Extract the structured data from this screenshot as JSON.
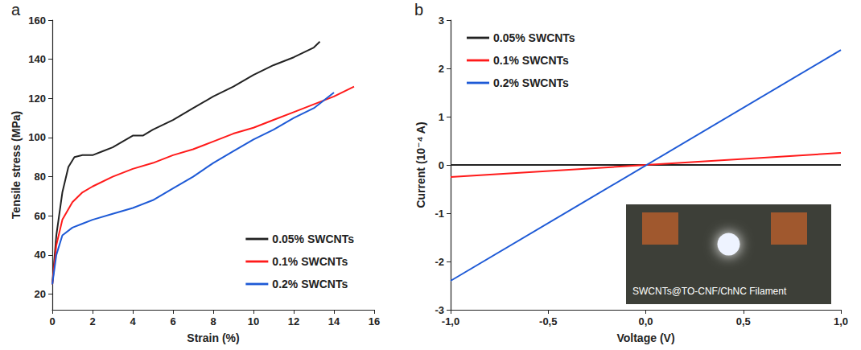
{
  "chart_data": [
    {
      "type": "line",
      "panel_label": "a",
      "x_label": "Strain (%)",
      "y_label": "Tensile stress (MPa)",
      "xlim": [
        0,
        16
      ],
      "xticks": [
        0,
        2,
        4,
        6,
        8,
        10,
        12,
        14,
        16
      ],
      "ylim": [
        12,
        160
      ],
      "yticks": [
        20,
        40,
        60,
        80,
        100,
        120,
        140,
        160
      ],
      "grid": false,
      "legend": "lower right",
      "line_style": "solid",
      "marker": "none",
      "series": [
        {
          "name": "0.05% SWCNTs",
          "color": "#222222",
          "x": [
            0,
            0.2,
            0.5,
            0.8,
            1.1,
            1.5,
            2,
            2.5,
            3,
            3.5,
            4,
            4.5,
            5,
            6,
            7,
            8,
            9,
            10,
            11,
            12,
            13,
            13.3
          ],
          "values": [
            25,
            50,
            72,
            85,
            90,
            91,
            91,
            93,
            95,
            98,
            101,
            101,
            104,
            109,
            115,
            121,
            126,
            132,
            137,
            141,
            146,
            149
          ]
        },
        {
          "name": "0.1% SWCNTs",
          "color": "#ff1a1a",
          "x": [
            0,
            0.2,
            0.5,
            1,
            1.5,
            2,
            3,
            4,
            5,
            6,
            7,
            8,
            9,
            10,
            11,
            12,
            13,
            14,
            15
          ],
          "values": [
            25,
            45,
            58,
            67,
            72,
            75,
            80,
            84,
            87,
            91,
            94,
            98,
            102,
            105,
            109,
            113,
            117,
            121,
            126
          ]
        },
        {
          "name": "0.2% SWCNTs",
          "color": "#1e5ad6",
          "x": [
            0,
            0.2,
            0.5,
            1,
            1.5,
            2,
            3,
            4,
            5,
            6,
            7,
            8,
            9,
            10,
            11,
            12,
            13,
            14
          ],
          "values": [
            25,
            40,
            50,
            54,
            56,
            58,
            61,
            64,
            68,
            74,
            80,
            87,
            93,
            99,
            104,
            110,
            115,
            123
          ]
        }
      ]
    },
    {
      "type": "line",
      "panel_label": "b",
      "x_label": "Voltage (V)",
      "y_label": "Current (10⁻⁴ A)",
      "xlim": [
        -1,
        1
      ],
      "xticks": [
        {
          "value": -1,
          "label": "-1,0"
        },
        {
          "value": -0.5,
          "label": "-0,5"
        },
        {
          "value": 0,
          "label": "0,0"
        },
        {
          "value": 0.5,
          "label": "0,5"
        },
        {
          "value": 1,
          "label": "1,0"
        }
      ],
      "ylim": [
        -3,
        3
      ],
      "yticks": [
        -3,
        -2,
        -1,
        0,
        1,
        2,
        3
      ],
      "grid": false,
      "legend": "upper left",
      "line_style": "solid",
      "marker": "none",
      "annotations": [
        "SWCNTs@TO-CNF/ChNC Filament"
      ],
      "series": [
        {
          "name": "0.05% SWCNTs",
          "color": "#222222",
          "x": [
            -1,
            1
          ],
          "values": [
            -0.002,
            0.002
          ]
        },
        {
          "name": "0.1% SWCNTs",
          "color": "#ff1a1a",
          "x": [
            -1,
            1
          ],
          "values": [
            -0.25,
            0.25
          ]
        },
        {
          "name": "0.2% SWCNTs",
          "color": "#1e5ad6",
          "x": [
            -1,
            1
          ],
          "values": [
            -2.4,
            2.38
          ]
        }
      ]
    }
  ]
}
